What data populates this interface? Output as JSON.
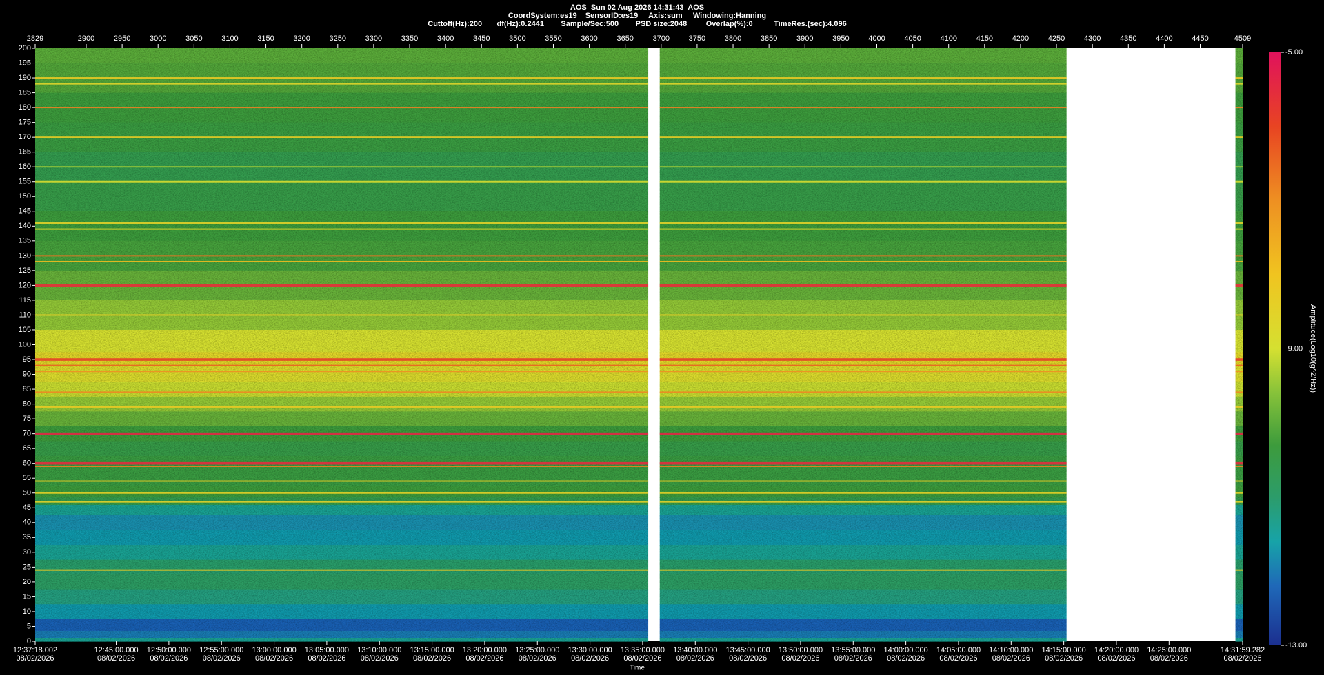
{
  "chart_data": {
    "type": "spectrogram",
    "header": [
      "AOS  Sun 02 Aug 2026 14:31:43  AOS",
      "CoordSystem:es19    SensorID:es19     Axis:sum     Windowing:Hanning",
      "Cuttoff(Hz):200       df(Hz):0.2441        Sample/Sec:500        PSD size:2048         Overlap(%):0          TimeRes.(sec):4.096"
    ],
    "xlabel": "Time",
    "colorbar_label": "Amplitude(Log10(g^2/Hz))",
    "xlim": [
      2829,
      4509
    ],
    "xticks": [
      2829,
      2900,
      2950,
      3000,
      3050,
      3100,
      3150,
      3200,
      3250,
      3300,
      3350,
      3400,
      3450,
      3500,
      3550,
      3600,
      3650,
      3700,
      3750,
      3800,
      3850,
      3900,
      3950,
      4000,
      4050,
      4100,
      4150,
      4200,
      4250,
      4300,
      4350,
      4400,
      4450,
      4509
    ],
    "time_ticks": [
      {
        "time": "12:37:18.002",
        "date": "08/02/2026"
      },
      {
        "time": "12:45:00.000",
        "date": "08/02/2026"
      },
      {
        "time": "12:50:00.000",
        "date": "08/02/2026"
      },
      {
        "time": "12:55:00.000",
        "date": "08/02/2026"
      },
      {
        "time": "13:00:00.000",
        "date": "08/02/2026"
      },
      {
        "time": "13:05:00.000",
        "date": "08/02/2026"
      },
      {
        "time": "13:10:00.000",
        "date": "08/02/2026"
      },
      {
        "time": "13:15:00.000",
        "date": "08/02/2026"
      },
      {
        "time": "13:20:00.000",
        "date": "08/02/2026"
      },
      {
        "time": "13:25:00.000",
        "date": "08/02/2026"
      },
      {
        "time": "13:30:00.000",
        "date": "08/02/2026"
      },
      {
        "time": "13:35:00.000",
        "date": "08/02/2026"
      },
      {
        "time": "13:40:00.000",
        "date": "08/02/2026"
      },
      {
        "time": "13:45:00.000",
        "date": "08/02/2026"
      },
      {
        "time": "13:50:00.000",
        "date": "08/02/2026"
      },
      {
        "time": "13:55:00.000",
        "date": "08/02/2026"
      },
      {
        "time": "14:00:00.000",
        "date": "08/02/2026"
      },
      {
        "time": "14:05:00.000",
        "date": "08/02/2026"
      },
      {
        "time": "14:10:00.000",
        "date": "08/02/2026"
      },
      {
        "time": "14:15:00.000",
        "date": "08/02/2026"
      },
      {
        "time": "14:20:00.000",
        "date": "08/02/2026"
      },
      {
        "time": "14:25:00.000",
        "date": "08/02/2026"
      },
      {
        "time": "14:31:59.282",
        "date": "08/02/2026"
      }
    ],
    "ylim": [
      0,
      200
    ],
    "yticks": [
      0,
      5,
      10,
      15,
      20,
      25,
      30,
      35,
      40,
      45,
      50,
      55,
      60,
      65,
      70,
      75,
      80,
      85,
      90,
      95,
      100,
      105,
      110,
      115,
      120,
      125,
      130,
      135,
      140,
      145,
      150,
      155,
      160,
      165,
      170,
      175,
      180,
      185,
      190,
      195,
      200
    ],
    "clim": [
      -13,
      -5
    ],
    "cticks": [
      {
        "value": -5,
        "label": "-5.00"
      },
      {
        "value": -9,
        "label": "-9.00"
      },
      {
        "value": -13,
        "label": "-13.00"
      }
    ],
    "colormap": [
      {
        "value": -13,
        "color": "#1b2f8f"
      },
      {
        "value": -12.2,
        "color": "#1f68b8"
      },
      {
        "value": -11.6,
        "color": "#17a3a8"
      },
      {
        "value": -11,
        "color": "#2c9c6a"
      },
      {
        "value": -10.3,
        "color": "#3d9b3c"
      },
      {
        "value": -9.6,
        "color": "#86c23a"
      },
      {
        "value": -9,
        "color": "#d5e031"
      },
      {
        "value": -8,
        "color": "#f0c420"
      },
      {
        "value": -7,
        "color": "#ee9022"
      },
      {
        "value": -6,
        "color": "#e84422"
      },
      {
        "value": -5,
        "color": "#e0125c"
      }
    ],
    "segments": [
      [
        2829,
        3682
      ],
      [
        3698,
        4264
      ],
      [
        4499,
        4509
      ]
    ],
    "profile": {
      "frequencies": [
        200,
        190,
        180,
        170,
        160,
        150,
        140,
        130,
        120,
        110,
        100,
        95,
        90,
        85,
        80,
        75,
        70,
        65,
        60,
        55,
        50,
        47,
        45,
        40,
        35,
        30,
        25,
        20,
        15,
        10,
        5,
        2,
        0
      ],
      "values": [
        -10.0,
        -10.1,
        -10.3,
        -10.4,
        -10.6,
        -10.5,
        -10.3,
        -10.2,
        -9.9,
        -9.5,
        -9.0,
        -8.6,
        -8.8,
        -9.1,
        -9.5,
        -9.9,
        -10.3,
        -10.5,
        -10.4,
        -10.4,
        -10.3,
        -10.6,
        -11.4,
        -11.8,
        -11.7,
        -11.4,
        -11.0,
        -10.9,
        -11.2,
        -11.7,
        -12.3,
        -12.0,
        -11.4
      ]
    },
    "tones": [
      {
        "freq": 190,
        "amp": -8.2
      },
      {
        "freq": 188,
        "amp": -8.6
      },
      {
        "freq": 180,
        "amp": -6.8
      },
      {
        "freq": 170,
        "amp": -8.3
      },
      {
        "freq": 160,
        "amp": -9.4
      },
      {
        "freq": 155,
        "amp": -8.9
      },
      {
        "freq": 141,
        "amp": -8.5
      },
      {
        "freq": 139,
        "amp": -8.8
      },
      {
        "freq": 130,
        "amp": -6.6
      },
      {
        "freq": 128,
        "amp": -7.8
      },
      {
        "freq": 120,
        "amp": -5.6
      },
      {
        "freq": 110,
        "amp": -8.4
      },
      {
        "freq": 95,
        "amp": -5.9
      },
      {
        "freq": 93,
        "amp": -6.4
      },
      {
        "freq": 91,
        "amp": -7.0
      },
      {
        "freq": 84,
        "amp": -6.9
      },
      {
        "freq": 79,
        "amp": -8.2
      },
      {
        "freq": 70,
        "amp": -5.4
      },
      {
        "freq": 60,
        "amp": -5.5
      },
      {
        "freq": 59,
        "amp": -6.8
      },
      {
        "freq": 54,
        "amp": -8.3
      },
      {
        "freq": 50,
        "amp": -8.4
      },
      {
        "freq": 47,
        "amp": -8.5
      },
      {
        "freq": 24,
        "amp": -8.2
      }
    ]
  }
}
